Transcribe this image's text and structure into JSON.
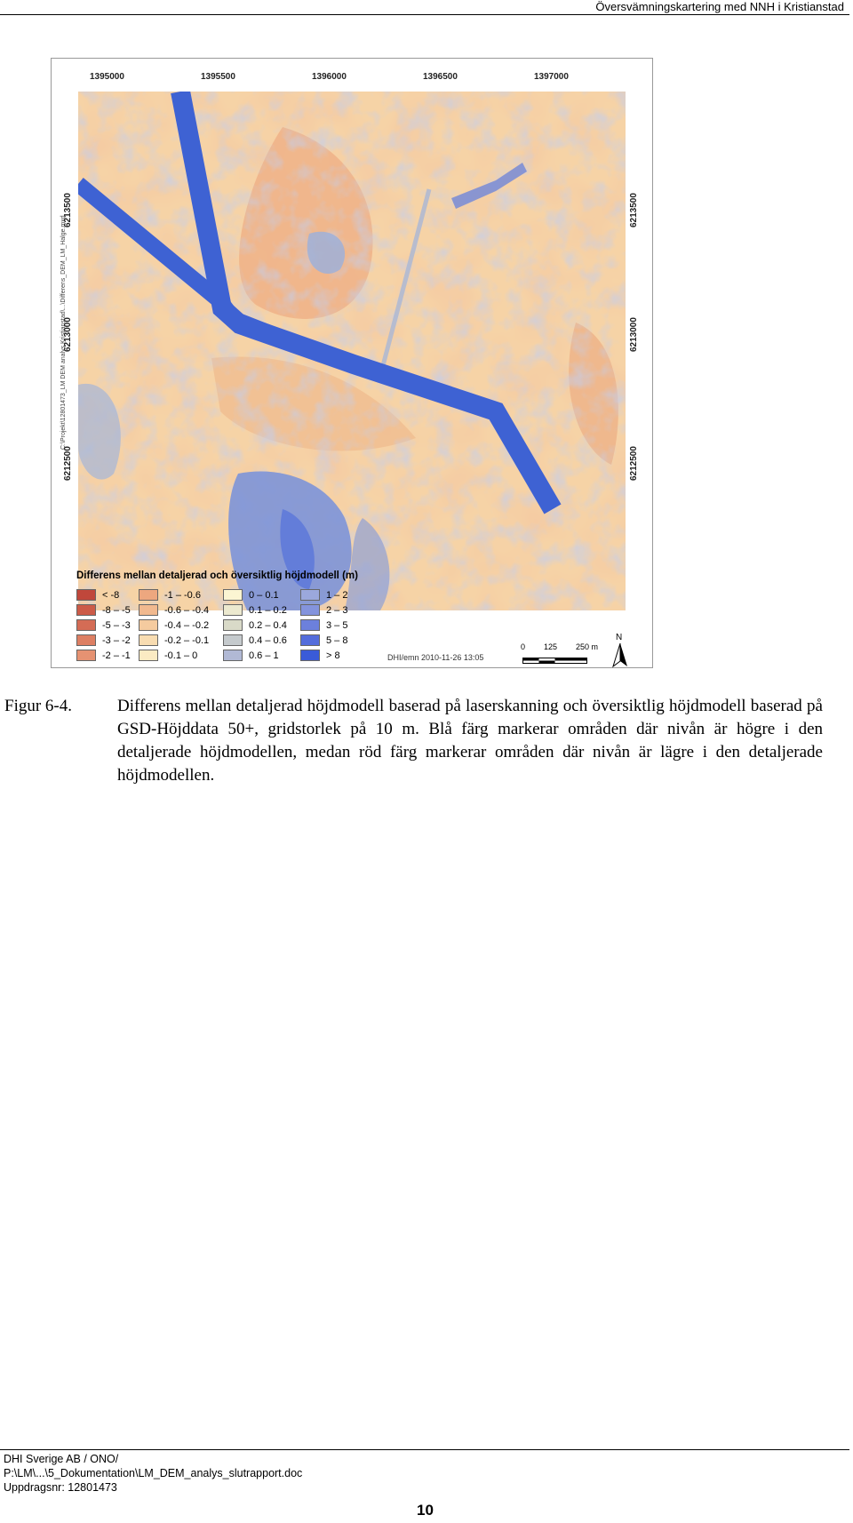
{
  "header": {
    "title": "Översvämningskartering med NNH i Kristianstad"
  },
  "map": {
    "side_path": "C:\\Projekt\\12801473_LM DEM analys Kristianstad\\...\\Differens_DEM_LM_Halge.mxd",
    "x_ticks": [
      "1395000",
      "1395500",
      "1396000",
      "1396500",
      "1397000"
    ],
    "y_ticks": [
      "6213500",
      "6213000",
      "6212500"
    ],
    "legend_title": "Differens mellan detaljerad och översiktlig höjdmodell (m)",
    "legend": [
      [
        {
          "label": "< -8",
          "color": "#c0473b"
        },
        {
          "label": "-8 – -5",
          "color": "#cc5b48"
        },
        {
          "label": "-5 – -3",
          "color": "#d46c55"
        },
        {
          "label": "-3 – -2",
          "color": "#dd7f63"
        },
        {
          "label": "-2 – -1",
          "color": "#e69272"
        }
      ],
      [
        {
          "label": "-1 – -0.6",
          "color": "#eda77f"
        },
        {
          "label": "-0.6 – -0.4",
          "color": "#f1b98f"
        },
        {
          "label": "-0.4 – -0.2",
          "color": "#f5cb9f"
        },
        {
          "label": "-0.2 – -0.1",
          "color": "#f8dcb1"
        },
        {
          "label": "-0.1 – 0",
          "color": "#fbebc3"
        }
      ],
      [
        {
          "label": "0 – 0.1",
          "color": "#fbf5d2"
        },
        {
          "label": "0.1 – 0.2",
          "color": "#ece9cf"
        },
        {
          "label": "0.2 – 0.4",
          "color": "#d9dac8"
        },
        {
          "label": "0.4 – 0.6",
          "color": "#c5cacd"
        },
        {
          "label": "0.6 – 1",
          "color": "#b1b9d5"
        }
      ],
      [
        {
          "label": "1 – 2",
          "color": "#9ba8dc"
        },
        {
          "label": "2 – 3",
          "color": "#8494dd"
        },
        {
          "label": "3 – 5",
          "color": "#6c80dc"
        },
        {
          "label": "5 – 8",
          "color": "#546ddb"
        },
        {
          "label": "> 8",
          "color": "#3a5bd8"
        }
      ]
    ],
    "credit": "DHI/emn 2010-11-26 13:05",
    "scale_labels": [
      "0",
      "125",
      "250 m"
    ],
    "north": "N"
  },
  "caption": {
    "label": "Figur 6-4.",
    "text": "Differens mellan detaljerad höjdmodell baserad på laserskanning och översiktlig höjdmodell baserad på GSD-Höjddata 50+, gridstorlek på 10 m. Blå färg markerar områden där nivån är högre i den detaljerade höjdmodellen, medan röd färg markerar områden där nivån är lägre i den detaljerade höjdmodellen."
  },
  "footer": {
    "line1": "DHI Sverige AB / ONO/",
    "line2": "P:\\LM\\...\\5_Dokumentation\\LM_DEM_analys_slutrapport.doc",
    "line3": "Uppdragsnr: 12801473",
    "page": "10"
  }
}
